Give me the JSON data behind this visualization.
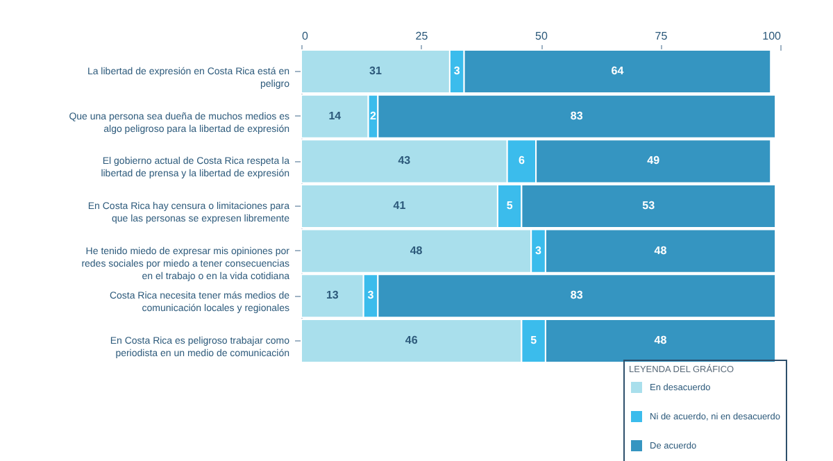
{
  "chart_data": {
    "type": "bar",
    "orientation": "horizontal",
    "stacked": true,
    "categories": [
      "La libertad de expresión en Costa Rica está en peligro",
      "Que una persona sea dueña de muchos medios es algo peligroso para la libertad de expresión",
      "El gobierno actual de Costa Rica respeta la libertad de prensa y la libertad de expresión",
      "En Costa Rica hay censura o limitaciones para que las personas se expresen libremente",
      "He tenido miedo de expresar mis opiniones por redes sociales por miedo a tener consecuencias en el trabajo o en la vida cotidiana",
      "Costa Rica necesita tener más medios de comunicación locales y regionales",
      "En Costa Rica es peligroso trabajar como periodista en un medio de comunicación"
    ],
    "series": [
      {
        "name": "En desacuerdo",
        "color": "#a9dfec",
        "values": [
          31,
          14,
          43,
          41,
          48,
          13,
          46
        ]
      },
      {
        "name": "Ni de acuerdo, ni en desacuerdo",
        "color": "#3bbcec",
        "values": [
          3,
          2,
          6,
          5,
          3,
          3,
          5
        ]
      },
      {
        "name": "De acuerdo",
        "color": "#3595c1",
        "values": [
          64,
          83,
          49,
          53,
          48,
          83,
          48
        ]
      }
    ],
    "xlim": [
      0,
      100
    ],
    "xticks": [
      0,
      25,
      50,
      75,
      100
    ],
    "data_labels": true,
    "grid": false,
    "legend": "bottom right",
    "legend_title": "LEYENDA DEL GRÁFICO"
  }
}
